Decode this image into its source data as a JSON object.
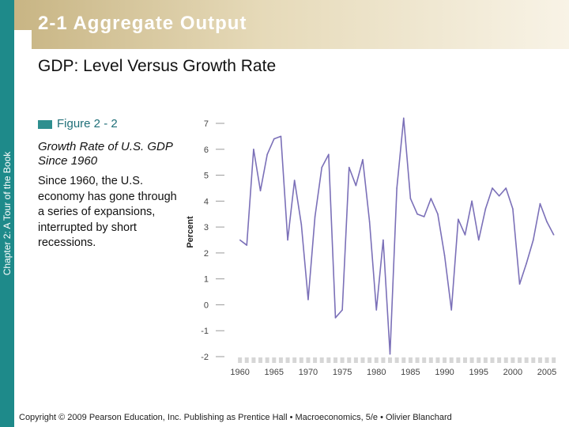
{
  "slide": {
    "title": "2-1  Aggregate Output",
    "subtitle": "GDP:  Level Versus Growth Rate",
    "side_label": "Chapter 2:  A Tour of the Book",
    "footer": "Copyright © 2009 Pearson Education, Inc. Publishing as Prentice Hall • Macroeconomics, 5/e • Olivier Blanchard",
    "accent_color": "#1e8a8a",
    "band_color": "#c8b584"
  },
  "figure": {
    "label": "Figure 2 - 2",
    "title": "Growth Rate of U.S. GDP Since 1960",
    "description": "Since 1960, the U.S. economy has gone through a series of expansions, interrupted by short recessions."
  },
  "chart_data": {
    "type": "line",
    "ylabel": "Percent",
    "xlabel": "",
    "ylim": [
      -2,
      7
    ],
    "xlim": [
      1959,
      2006.5
    ],
    "yticks": [
      "7",
      "6",
      "5",
      "4",
      "3",
      "2",
      "1",
      "0",
      "-1",
      "-2"
    ],
    "xticks": [
      "1960",
      "1965",
      "1970",
      "1975",
      "1980",
      "1985",
      "1990",
      "1995",
      "2000",
      "2005"
    ],
    "grid": false,
    "recession_shading": "gray blocks along the x-axis",
    "series_color": "#7b70b8",
    "series": [
      {
        "x": [
          1960,
          1961,
          1962,
          1963,
          1964,
          1965,
          1966,
          1967,
          1968,
          1969,
          1970,
          1971,
          1972,
          1973,
          1974,
          1975,
          1976,
          1977,
          1978,
          1979,
          1980,
          1981,
          1982,
          1983,
          1984,
          1985,
          1986,
          1987,
          1988,
          1989,
          1990,
          1991,
          1992,
          1993,
          1994,
          1995,
          1996,
          1997,
          1998,
          1999,
          2000,
          2001,
          2002,
          2003,
          2004,
          2005,
          2006
        ],
        "values": [
          2.5,
          2.3,
          6.0,
          4.4,
          5.8,
          6.4,
          6.5,
          2.5,
          4.8,
          3.1,
          0.2,
          3.4,
          5.3,
          5.8,
          -0.5,
          -0.2,
          5.3,
          4.6,
          5.6,
          3.2,
          -0.2,
          2.5,
          -1.9,
          4.5,
          7.2,
          4.1,
          3.5,
          3.4,
          4.1,
          3.5,
          1.9,
          -0.2,
          3.3,
          2.7,
          4.0,
          2.5,
          3.7,
          4.5,
          4.2,
          4.5,
          3.7,
          0.8,
          1.6,
          2.5,
          3.9,
          3.2,
          2.7
        ]
      }
    ]
  }
}
